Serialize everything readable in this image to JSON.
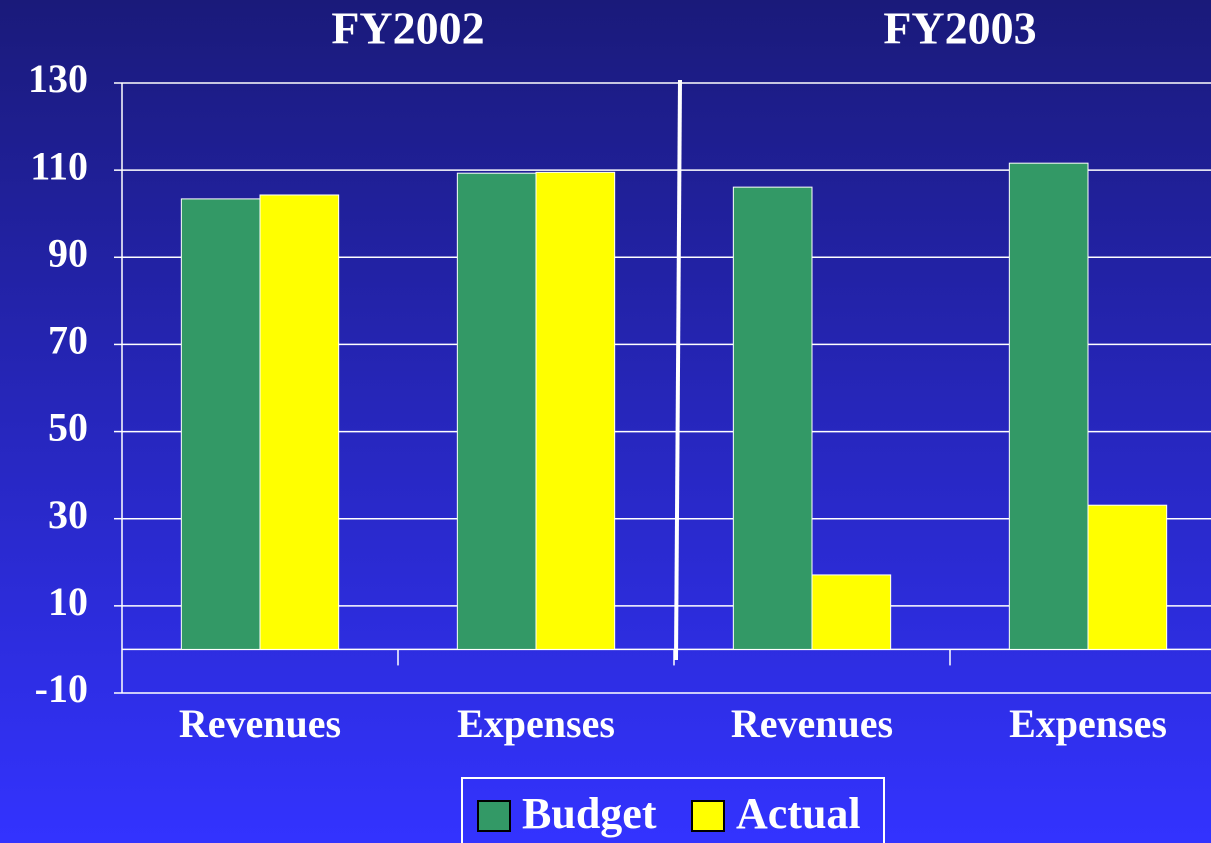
{
  "chart_data": {
    "type": "bar",
    "groups": [
      "FY2002",
      "FY2003"
    ],
    "categories": [
      "Revenues",
      "Expenses",
      "Revenues",
      "Expenses"
    ],
    "series": [
      {
        "name": "Budget",
        "color": "#339966",
        "values": [
          103.4,
          109.3,
          106.1,
          111.6
        ]
      },
      {
        "name": "Actual",
        "color": "#ffff00",
        "values": [
          104.3,
          109.5,
          17.1,
          33.1
        ]
      }
    ],
    "ylim": [
      -10,
      130
    ],
    "yticks": [
      -10,
      10,
      30,
      50,
      70,
      90,
      110,
      130
    ],
    "grid": true,
    "legend": "bottom"
  }
}
